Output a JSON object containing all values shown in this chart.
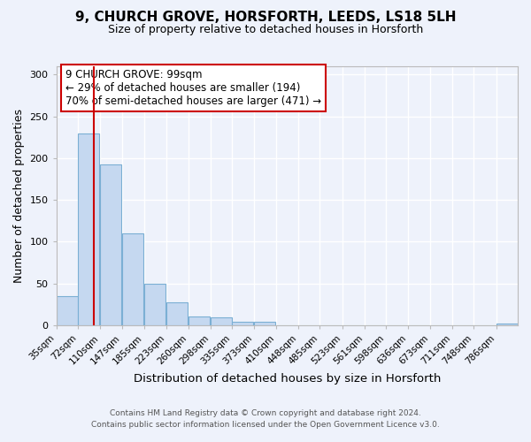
{
  "title": "9, CHURCH GROVE, HORSFORTH, LEEDS, LS18 5LH",
  "subtitle": "Size of property relative to detached houses in Horsforth",
  "xlabel": "Distribution of detached houses by size in Horsforth",
  "ylabel": "Number of detached properties",
  "bin_labels": [
    "35sqm",
    "72sqm",
    "110sqm",
    "147sqm",
    "185sqm",
    "223sqm",
    "260sqm",
    "298sqm",
    "335sqm",
    "373sqm",
    "410sqm",
    "448sqm",
    "485sqm",
    "523sqm",
    "561sqm",
    "598sqm",
    "636sqm",
    "673sqm",
    "711sqm",
    "748sqm",
    "786sqm"
  ],
  "bar_values": [
    35,
    230,
    192,
    110,
    50,
    27,
    10,
    9,
    4,
    4,
    0,
    0,
    0,
    0,
    0,
    0,
    0,
    0,
    0,
    0,
    2
  ],
  "bar_color": "#c5d8f0",
  "bar_edge_color": "#7bafd4",
  "vline_x": 99,
  "vline_color": "#cc0000",
  "ylim": [
    0,
    310
  ],
  "yticks": [
    0,
    50,
    100,
    150,
    200,
    250,
    300
  ],
  "annotation_title": "9 CHURCH GROVE: 99sqm",
  "annotation_line1": "← 29% of detached houses are smaller (194)",
  "annotation_line2": "70% of semi-detached houses are larger (471) →",
  "annotation_box_color": "#ffffff",
  "annotation_box_edge": "#cc0000",
  "footer1": "Contains HM Land Registry data © Crown copyright and database right 2024.",
  "footer2": "Contains public sector information licensed under the Open Government Licence v3.0.",
  "background_color": "#eef2fb",
  "grid_color": "#ffffff",
  "bin_width": 37
}
